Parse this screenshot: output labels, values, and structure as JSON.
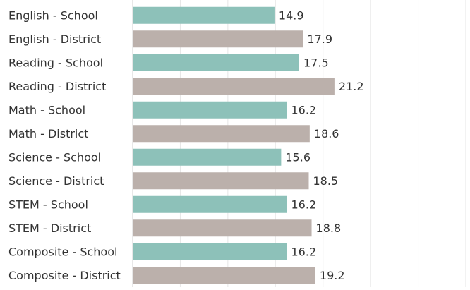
{
  "chart_data": {
    "type": "bar",
    "orientation": "horizontal",
    "categories": [
      "English - School",
      "English - District",
      "Reading - School",
      "Reading - District",
      "Math - School",
      "Math - District",
      "Science - School",
      "Science - District",
      "STEM - School",
      "STEM - District",
      "Composite - School",
      "Composite - District"
    ],
    "values": [
      14.9,
      17.9,
      17.5,
      21.2,
      16.2,
      18.6,
      15.6,
      18.5,
      16.2,
      18.8,
      16.2,
      19.2
    ],
    "colors": [
      "#8dc1b9",
      "#bbb0ab",
      "#8dc1b9",
      "#bbb0ab",
      "#8dc1b9",
      "#bbb0ab",
      "#8dc1b9",
      "#bbb0ab",
      "#8dc1b9",
      "#bbb0ab",
      "#8dc1b9",
      "#bbb0ab"
    ],
    "xlim": [
      0,
      35
    ],
    "xticks": [
      0,
      5,
      10,
      15,
      20,
      25,
      30,
      35
    ],
    "grid": true
  }
}
